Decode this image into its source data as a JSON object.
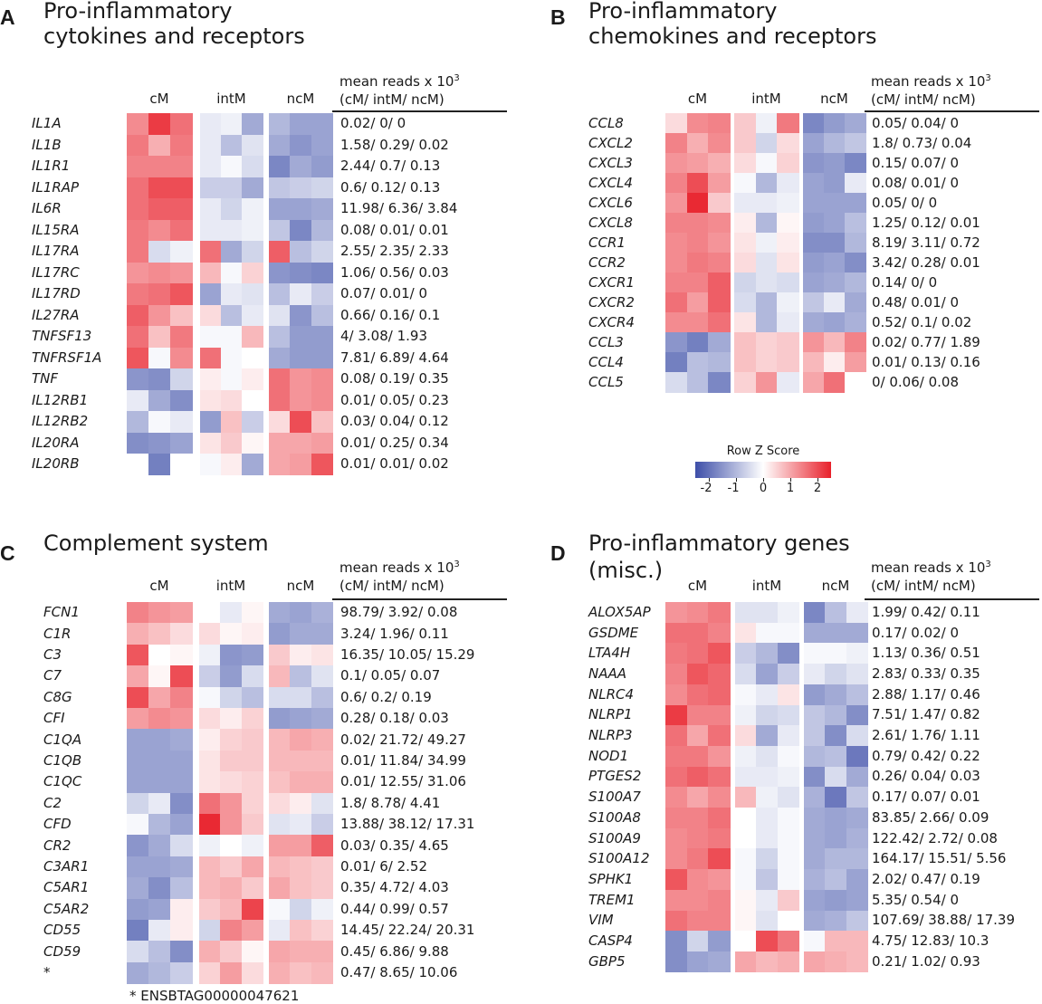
{
  "group_labels": [
    "cM",
    "intM",
    "ncM"
  ],
  "mean_header": {
    "line1": "mean reads x 10",
    "sup": "3",
    "line2": "(cM/ intM/ ncM)"
  },
  "legend": {
    "title": "Row Z Score",
    "ticks": [
      "-2",
      "-1",
      "0",
      "1",
      "2"
    ],
    "range": [
      -2.5,
      2.5
    ],
    "colors": {
      "low": "#3d4ea8",
      "mid": "#ffffff",
      "high": "#e8202a"
    }
  },
  "chart_data": [
    {
      "type": "heatmap",
      "letter": "A",
      "title": [
        "Pro-inflammatory",
        "cytokines and receptors"
      ],
      "genes": [
        "IL1A",
        "IL1B",
        "IL1R1",
        "IL1RAP",
        "IL6R",
        "IL15RA",
        "IL17RA",
        "IL17RC",
        "IL17RD",
        "IL27RA",
        "TNFSF13",
        "TNFRSF1A",
        "TNF",
        "IL12RB1",
        "IL12RB2",
        "IL20RA",
        "IL20RB"
      ],
      "mean_reads": [
        "0.02/ 0/ 0",
        "1.58/ 0.29/ 0.02",
        "2.44/ 0.7/ 0.13",
        "0.6/ 0.12/ 0.13",
        "11.98/ 6.36/ 3.84",
        "0.08/ 0.01/ 0.01",
        "2.55/ 2.35/ 2.33",
        "1.06/ 0.56/ 0.03",
        "0.07/ 0.01/ 0",
        "0.66/ 0.16/ 0.1",
        "4/ 3.08/ 1.93",
        "7.81/ 6.89/ 4.64",
        "0.08/ 0.19/ 0.35",
        "0.01/ 0.05/ 0.23",
        "0.03/ 0.04/ 0.12",
        "0.01/ 0.25/ 0.34",
        "0.01/ 0.01/ 0.02"
      ],
      "z": [
        [
          1.3,
          2.2,
          1.6,
          -0.3,
          -0.2,
          -1.2,
          -1.0,
          -1.3,
          -1.3
        ],
        [
          1.5,
          0.9,
          1.5,
          -0.3,
          -0.9,
          -0.4,
          -1.2,
          -1.5,
          -1.3
        ],
        [
          1.4,
          1.4,
          1.4,
          -0.3,
          -0.1,
          -0.5,
          -1.7,
          -1.2,
          -1.4
        ],
        [
          1.6,
          2.0,
          2.0,
          -0.7,
          -0.7,
          -1.2,
          -0.8,
          -0.7,
          -0.6
        ],
        [
          1.6,
          1.8,
          1.8,
          -0.3,
          -0.6,
          -0.2,
          -1.3,
          -1.3,
          -1.2
        ],
        [
          1.5,
          1.3,
          1.6,
          -0.3,
          -0.3,
          -0.2,
          -0.8,
          -1.7,
          -1.0
        ],
        [
          1.5,
          -0.5,
          -0.2,
          1.6,
          -1.2,
          -0.6,
          1.8,
          -0.9,
          -0.6
        ],
        [
          1.2,
          1.3,
          1.2,
          0.8,
          -0.1,
          0.5,
          -1.5,
          -1.6,
          -1.7
        ],
        [
          1.5,
          1.6,
          1.9,
          -1.3,
          -0.3,
          -0.4,
          -0.9,
          -0.3,
          -0.7
        ],
        [
          1.8,
          1.2,
          0.7,
          0.4,
          -0.9,
          -0.3,
          -0.4,
          -1.5,
          -0.9
        ],
        [
          1.6,
          0.7,
          1.5,
          -0.1,
          -0.1,
          0.8,
          -0.9,
          -1.4,
          -1.4
        ],
        [
          1.9,
          -0.1,
          1.3,
          1.6,
          -0.1,
          0.0,
          -1.2,
          -1.4,
          -1.4
        ],
        [
          -1.5,
          -1.6,
          -0.6,
          0.2,
          -0.1,
          0.2,
          1.6,
          1.2,
          1.3
        ],
        [
          -0.3,
          -1.2,
          -1.6,
          0.3,
          0.4,
          0.0,
          1.6,
          1.2,
          1.3
        ],
        [
          -1.0,
          -0.1,
          -0.3,
          -1.4,
          0.7,
          -0.7,
          0.4,
          2.0,
          0.7
        ],
        [
          -1.6,
          -1.5,
          -1.3,
          0.3,
          0.6,
          0.1,
          1.0,
          1.0,
          1.1
        ],
        [
          0.0,
          -1.8,
          0.0,
          -0.1,
          0.2,
          -1.2,
          1.0,
          1.1,
          1.9
        ]
      ]
    },
    {
      "type": "heatmap",
      "letter": "B",
      "title": [
        "Pro-inflammatory",
        "chemokines and receptors"
      ],
      "genes": [
        "CCL8",
        "CXCL2",
        "CXCL3",
        "CXCL4",
        "CXCL6",
        "CXCL8",
        "CCR1",
        "CCR2",
        "CXCR1",
        "CXCR2",
        "CXCR4",
        "CCL3",
        "CCL4",
        "CCL5"
      ],
      "mean_reads": [
        "0.05/ 0.04/ 0",
        "1.8/ 0.73/ 0.04",
        "0.15/ 0.07/ 0",
        "0.08/ 0.01/ 0",
        "0.05/ 0/ 0",
        "1.25/ 0.12/ 0.01",
        "8.19/ 3.11/ 0.72",
        "3.42/ 0.28/ 0.01",
        "0.14/ 0/ 0",
        "0.48/ 0.01/ 0",
        "0.52/ 0.1/ 0.02",
        "0.02/ 0.77/ 1.89",
        "0.01/ 0.13/ 0.16",
        "0/ 0.06/ 0.08"
      ],
      "z": [
        [
          0.4,
          1.3,
          1.4,
          0.6,
          -0.2,
          1.5,
          -1.7,
          -1.4,
          -1.2
        ],
        [
          1.4,
          0.9,
          1.3,
          0.6,
          -0.6,
          0.4,
          -1.3,
          -1.0,
          -0.8
        ],
        [
          1.2,
          1.1,
          0.9,
          0.4,
          -0.1,
          0.5,
          -1.5,
          -1.4,
          -1.7
        ],
        [
          1.4,
          2.0,
          1.1,
          -0.1,
          -1.0,
          -0.3,
          -1.3,
          -1.4,
          -0.3
        ],
        [
          1.2,
          2.4,
          0.6,
          -0.3,
          -0.3,
          -0.2,
          -1.3,
          -1.3,
          -1.3
        ],
        [
          1.4,
          1.4,
          1.3,
          0.2,
          -1.0,
          0.1,
          -1.4,
          -1.3,
          -0.9
        ],
        [
          1.3,
          1.4,
          1.2,
          0.3,
          -0.2,
          0.2,
          -1.6,
          -1.6,
          -1.0
        ],
        [
          1.3,
          1.5,
          1.4,
          0.4,
          -0.4,
          0.3,
          -1.4,
          -1.3,
          -1.6
        ],
        [
          1.4,
          1.4,
          1.8,
          -0.6,
          -0.4,
          -0.5,
          -1.3,
          -1.2,
          -1.0
        ],
        [
          1.6,
          1.1,
          1.8,
          -0.5,
          -1.0,
          -0.2,
          -0.8,
          -0.3,
          -1.2
        ],
        [
          1.3,
          1.3,
          1.6,
          0.3,
          -1.0,
          -0.3,
          -1.2,
          -1.3,
          -1.1
        ],
        [
          -1.5,
          -1.8,
          -1.2,
          0.7,
          0.5,
          0.6,
          1.2,
          0.8,
          1.4
        ],
        [
          -1.8,
          -0.9,
          -1.0,
          0.7,
          0.5,
          0.6,
          0.8,
          0.2,
          1.1
        ],
        [
          -0.5,
          -0.9,
          -1.7,
          0.5,
          1.2,
          -0.3,
          1.0,
          1.6,
          0.0
        ]
      ]
    },
    {
      "type": "heatmap",
      "letter": "C",
      "title": [
        "Complement system"
      ],
      "genes": [
        "FCN1",
        "C1R",
        "C3",
        "C7",
        "C8G",
        "CFI",
        "C1QA",
        "C1QB",
        "C1QC",
        "C2",
        "CFD",
        "CR2",
        "C3AR1",
        "C5AR1",
        "C5AR2",
        "CD55",
        "CD59",
        "*"
      ],
      "mean_reads": [
        "98.79/ 3.92/ 0.08",
        "3.24/ 1.96/ 0.11",
        "16.35/ 10.05/ 15.29",
        "0.1/ 0.05/ 0.07",
        "0.6/ 0.2/ 0.19",
        "0.28/ 0.18/ 0.03",
        "0.02/ 21.72/ 49.27",
        "0.01/ 11.84/ 34.99",
        "0.01/ 12.55/ 31.06",
        "1.8/ 8.78/ 4.41",
        "13.88/ 38.12/ 17.31",
        "0.03/ 0.35/ 4.65",
        "0.01/ 6/ 2.52",
        "0.35/ 4.72/ 4.03",
        "0.44/ 0.99/ 0.57",
        "14.45/ 22.24/ 20.31",
        "0.45/ 6.86/ 9.88",
        "0.47/ 8.65/ 10.06"
      ],
      "footnote": "* ENSBTAG00000047621",
      "z": [
        [
          1.4,
          1.2,
          1.1,
          0.0,
          -0.3,
          0.1,
          -1.2,
          -1.3,
          -1.1
        ],
        [
          0.9,
          0.7,
          0.4,
          0.4,
          0.1,
          0.2,
          -1.4,
          -1.2,
          -1.2
        ],
        [
          1.9,
          0.0,
          0.1,
          -0.2,
          -1.5,
          -1.4,
          0.6,
          0.2,
          0.3
        ],
        [
          1.0,
          0.1,
          2.0,
          -0.7,
          -1.4,
          -0.5,
          0.8,
          -0.9,
          -0.4
        ],
        [
          2.0,
          1.0,
          1.4,
          -0.1,
          -0.6,
          -0.9,
          -0.5,
          -0.5,
          -0.9
        ],
        [
          1.1,
          1.3,
          1.2,
          0.4,
          0.2,
          0.5,
          -1.4,
          -1.3,
          -1.2
        ],
        [
          -1.3,
          -1.3,
          -1.2,
          0.2,
          0.5,
          0.6,
          0.8,
          1.0,
          0.9
        ],
        [
          -1.3,
          -1.3,
          -1.3,
          0.3,
          0.6,
          0.6,
          0.8,
          0.8,
          0.8
        ],
        [
          -1.3,
          -1.3,
          -1.3,
          0.3,
          0.4,
          0.5,
          0.7,
          0.9,
          0.9
        ],
        [
          -0.6,
          -0.3,
          -1.6,
          1.6,
          1.2,
          0.5,
          0.4,
          0.2,
          -0.4
        ],
        [
          -0.1,
          -1.0,
          -1.3,
          2.4,
          1.2,
          0.6,
          -0.4,
          -0.3,
          -0.7
        ],
        [
          -1.5,
          -1.2,
          -0.5,
          -0.2,
          0.0,
          -0.2,
          1.1,
          1.1,
          1.8
        ],
        [
          -1.3,
          -1.3,
          -1.2,
          0.8,
          0.6,
          1.0,
          0.8,
          0.7,
          0.6
        ],
        [
          -1.2,
          -1.6,
          -0.9,
          0.8,
          0.9,
          0.6,
          1.0,
          0.7,
          0.6
        ],
        [
          -1.4,
          -1.3,
          0.2,
          0.6,
          0.8,
          2.1,
          -0.1,
          -0.6,
          -0.2
        ],
        [
          -1.8,
          -0.3,
          0.2,
          -0.6,
          1.4,
          1.1,
          -0.3,
          0.7,
          0.5
        ],
        [
          -0.5,
          -0.9,
          -1.6,
          0.9,
          0.6,
          0.1,
          1.0,
          0.9,
          0.9
        ],
        [
          -1.2,
          -1.0,
          -0.7,
          0.5,
          1.1,
          0.4,
          0.9,
          0.7,
          0.8
        ]
      ]
    },
    {
      "type": "heatmap",
      "letter": "D",
      "title": [
        "Pro-inflammatory genes",
        "(misc.)"
      ],
      "genes": [
        "ALOX5AP",
        "GSDME",
        "LTA4H",
        "NAAA",
        "NLRC4",
        "NLRP1",
        "NLRP3",
        "NOD1",
        "PTGES2",
        "S100A7",
        "S100A8",
        "S100A9",
        "S100A12",
        "SPHK1",
        "TREM1",
        "VIM",
        "CASP4",
        "GBP5"
      ],
      "mean_reads": [
        "1.99/ 0.42/ 0.11",
        "0.17/ 0.02/ 0",
        "1.13/ 0.36/ 0.51",
        "2.83/ 0.33/ 0.35",
        "2.88/ 1.17/ 0.46",
        "7.51/ 1.47/ 0.82",
        "2.61/ 1.76/ 1.11",
        "0.79/ 0.42/ 0.22",
        "0.26/ 0.04/ 0.03",
        "0.17/ 0.07/ 0.01",
        "83.85/ 2.66/ 0.09",
        "122.42/ 2.72/ 0.08",
        "164.17/ 15.51/ 5.56",
        "2.02/ 0.47/ 0.19",
        "5.35/ 0.54/ 0",
        "107.69/ 38.88/ 17.39",
        "4.75/ 12.83/ 10.3",
        "0.21/ 1.02/ 0.93"
      ],
      "z": [
        [
          1.2,
          1.3,
          1.5,
          -0.4,
          -0.4,
          -0.2,
          -1.7,
          -0.9,
          -0.3
        ],
        [
          1.6,
          1.6,
          1.4,
          0.3,
          -0.1,
          -0.1,
          -1.2,
          -1.2,
          -1.2
        ],
        [
          1.5,
          1.6,
          1.9,
          -0.7,
          -1.0,
          -1.6,
          -0.1,
          -0.1,
          -0.2
        ],
        [
          1.4,
          1.9,
          1.7,
          -0.5,
          -1.3,
          -0.7,
          -0.3,
          -0.6,
          -0.4
        ],
        [
          1.3,
          1.6,
          1.7,
          -0.1,
          -0.3,
          0.3,
          -1.4,
          -1.2,
          -0.9
        ],
        [
          2.2,
          1.4,
          1.4,
          -0.2,
          -0.6,
          -0.5,
          -0.8,
          -1.0,
          -1.6
        ],
        [
          1.6,
          1.0,
          1.6,
          0.4,
          -1.2,
          -0.3,
          -0.8,
          -1.6,
          -0.5
        ],
        [
          1.5,
          1.5,
          1.2,
          -0.2,
          -0.4,
          -0.1,
          -1.0,
          -0.9,
          -1.9
        ],
        [
          1.6,
          1.8,
          1.6,
          -0.3,
          -0.3,
          -0.2,
          -1.6,
          -0.5,
          -1.2
        ],
        [
          1.3,
          1.0,
          1.3,
          0.8,
          -0.2,
          -0.4,
          -1.1,
          -1.9,
          -0.8
        ],
        [
          1.4,
          1.4,
          1.6,
          0.0,
          -0.3,
          -0.1,
          -1.2,
          -1.3,
          -1.2
        ],
        [
          1.3,
          1.4,
          1.5,
          0.0,
          -0.3,
          -0.1,
          -1.2,
          -1.3,
          -1.1
        ],
        [
          1.3,
          1.5,
          2.0,
          -0.1,
          -0.6,
          -0.1,
          -1.2,
          -1.0,
          -1.0
        ],
        [
          1.9,
          1.3,
          1.2,
          -0.1,
          -0.8,
          -0.1,
          -1.1,
          -0.9,
          -1.3
        ],
        [
          1.3,
          1.3,
          1.4,
          0.1,
          -0.3,
          0.6,
          -1.3,
          -1.4,
          -1.3
        ],
        [
          1.6,
          1.4,
          1.4,
          0.1,
          -0.4,
          0.0,
          -1.2,
          -1.1,
          -0.8
        ],
        [
          -1.6,
          -0.6,
          -1.4,
          0.0,
          2.0,
          1.5,
          -0.1,
          0.8,
          0.8
        ],
        [
          -1.6,
          -1.3,
          -1.2,
          1.0,
          0.8,
          0.9,
          1.0,
          0.9,
          0.8
        ]
      ]
    }
  ]
}
